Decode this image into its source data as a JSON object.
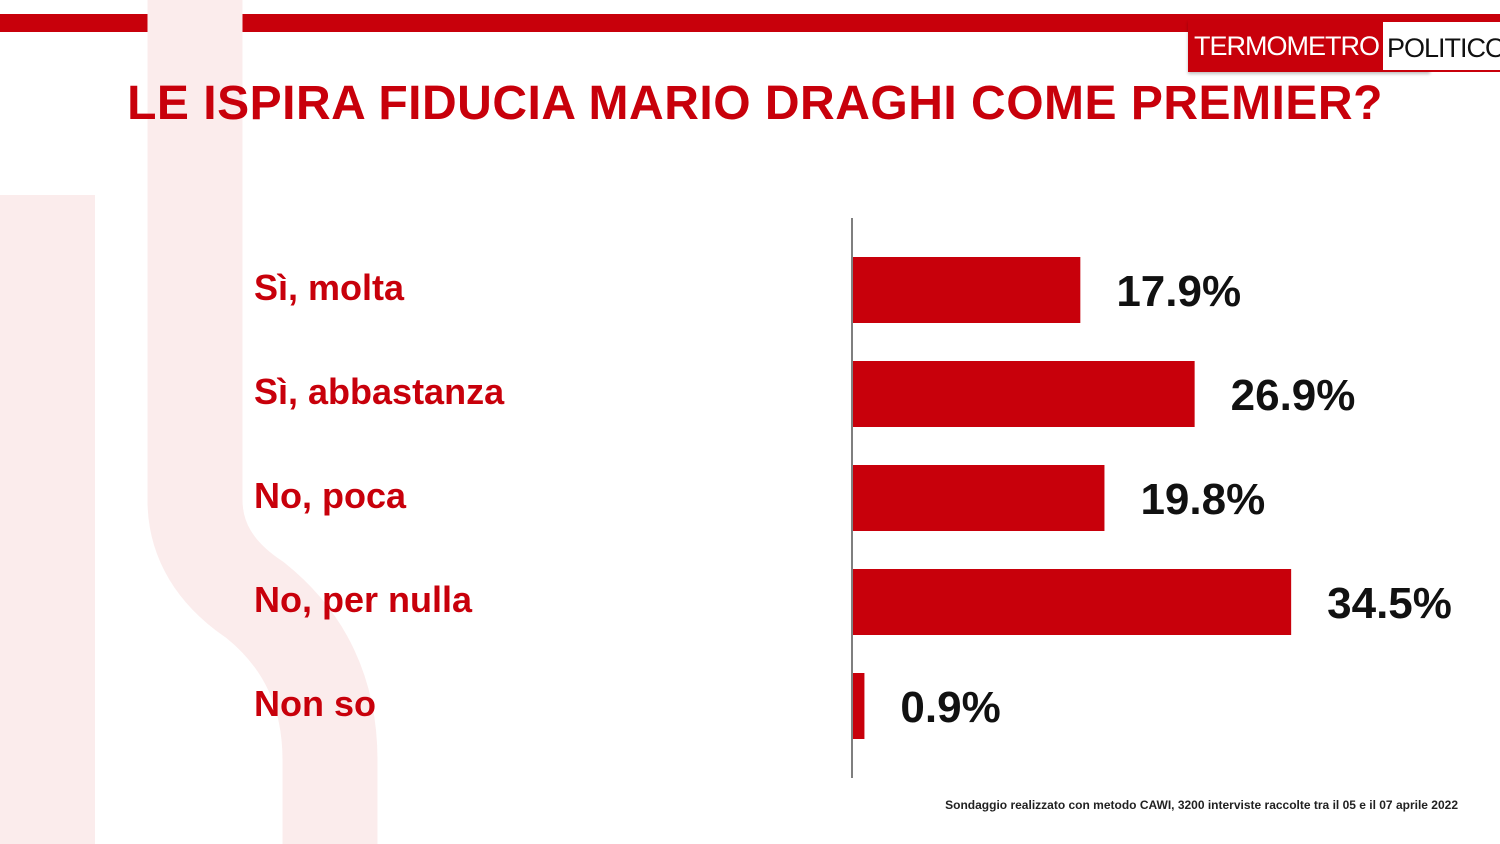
{
  "logo": {
    "part1": "TERMOMETRO",
    "part2": "POLITICO"
  },
  "colors": {
    "accent": "#c8000b",
    "value_text": "#111111"
  },
  "chart_data": {
    "type": "bar",
    "orientation": "horizontal",
    "title": "LE ISPIRA FIDUCIA MARIO DRAGHI COME PREMIER?",
    "categories": [
      "Sì, molta",
      "Sì, abbastanza",
      "No, poca",
      "No, per nulla",
      "Non so"
    ],
    "values": [
      17.9,
      26.9,
      19.8,
      34.5,
      0.9
    ],
    "value_labels": [
      "17.9%",
      "26.9%",
      "19.8%",
      "34.5%",
      "0.9%"
    ],
    "unit": "%",
    "grid": false,
    "legend": "none",
    "xlim": [
      0,
      40
    ]
  },
  "footnote": "Sondaggio realizzato con metodo CAWI, 3200 interviste raccolte tra il 05 e il 07 aprile 2022"
}
